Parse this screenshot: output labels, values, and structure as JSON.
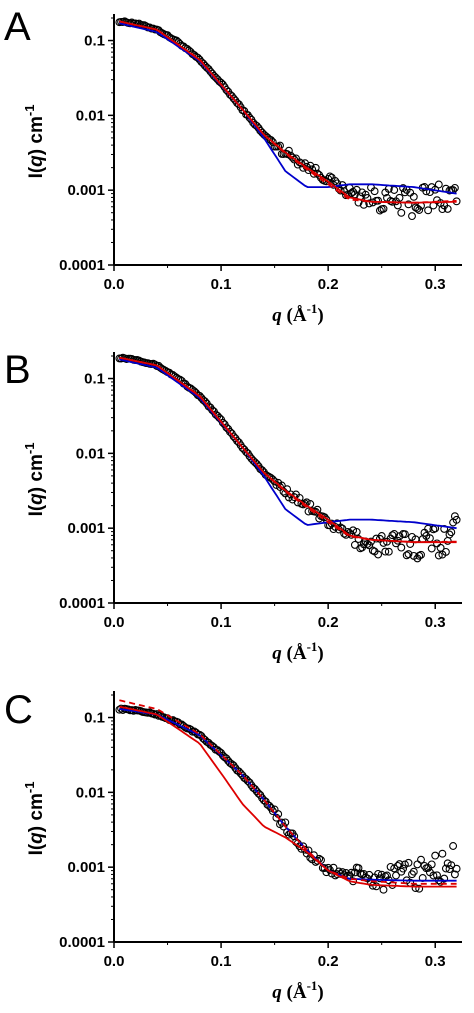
{
  "chart_data": [
    {
      "panel": "A",
      "type": "scatter",
      "xlabel": "q (Å-1)",
      "ylabel": "I(q) cm-1",
      "xlim": [
        0,
        0.325
      ],
      "ylim": [
        0.0001,
        0.2
      ],
      "yscale": "log",
      "xticks": [
        "0.0",
        "0.1",
        "0.2",
        "0.3"
      ],
      "yticks": [
        "0.1",
        "0.01",
        "0.001",
        "0.0001"
      ],
      "series": [
        {
          "style": "open-circles",
          "color": "#000000",
          "x": [
            0.005,
            0.02,
            0.04,
            0.06,
            0.08,
            0.1,
            0.12,
            0.14,
            0.16,
            0.18,
            0.2,
            0.22,
            0.24,
            0.26,
            0.28,
            0.3,
            0.32
          ],
          "y": [
            0.18,
            0.17,
            0.14,
            0.095,
            0.055,
            0.027,
            0.012,
            0.0055,
            0.0032,
            0.0021,
            0.0014,
            0.0009,
            0.0008,
            0.0007,
            0.0007,
            0.0008,
            0.0009
          ]
        },
        {
          "style": "line",
          "color": "#0000cc",
          "x": [
            0.005,
            0.04,
            0.08,
            0.12,
            0.14,
            0.16,
            0.18,
            0.2,
            0.22,
            0.24,
            0.28,
            0.32
          ],
          "y": [
            0.17,
            0.13,
            0.053,
            0.012,
            0.005,
            0.0018,
            0.0011,
            0.0011,
            0.0012,
            0.0012,
            0.0011,
            0.0009
          ]
        },
        {
          "style": "line",
          "color": "#dd0000",
          "x": [
            0.005,
            0.04,
            0.08,
            0.12,
            0.14,
            0.16,
            0.18,
            0.2,
            0.22,
            0.24,
            0.28,
            0.32
          ],
          "y": [
            0.18,
            0.14,
            0.055,
            0.012,
            0.0055,
            0.0032,
            0.002,
            0.0013,
            0.0008,
            0.0007,
            0.00068,
            0.0007
          ]
        },
        {
          "style": "dashed",
          "color": "#dd0000",
          "x": [
            0.005,
            0.04,
            0.08,
            0.12,
            0.14,
            0.16,
            0.18,
            0.2,
            0.22,
            0.24,
            0.28,
            0.32
          ],
          "y": [
            0.18,
            0.14,
            0.056,
            0.012,
            0.0055,
            0.0031,
            0.0019,
            0.0012,
            0.00075,
            0.0007,
            0.00068,
            0.00072
          ]
        }
      ]
    },
    {
      "panel": "B",
      "type": "scatter",
      "xlabel": "q (Å-1)",
      "ylabel": "I(q) cm-1",
      "xlim": [
        0,
        0.325
      ],
      "ylim": [
        0.0001,
        0.2
      ],
      "yscale": "log",
      "xticks": [
        "0.0",
        "0.1",
        "0.2",
        "0.3"
      ],
      "yticks": [
        "0.1",
        "0.01",
        "0.001",
        "0.0001"
      ],
      "series": [
        {
          "style": "open-circles",
          "color": "#000000",
          "x": [
            0.005,
            0.02,
            0.04,
            0.06,
            0.08,
            0.1,
            0.12,
            0.14,
            0.16,
            0.18,
            0.2,
            0.22,
            0.24,
            0.26,
            0.28,
            0.3,
            0.32
          ],
          "y": [
            0.19,
            0.18,
            0.15,
            0.1,
            0.058,
            0.028,
            0.012,
            0.0055,
            0.0032,
            0.002,
            0.0012,
            0.0008,
            0.0006,
            0.0006,
            0.0006,
            0.0007,
            0.0009
          ]
        },
        {
          "style": "line",
          "color": "#0000cc",
          "x": [
            0.005,
            0.04,
            0.08,
            0.12,
            0.14,
            0.16,
            0.18,
            0.2,
            0.22,
            0.24,
            0.28,
            0.32
          ],
          "y": [
            0.18,
            0.14,
            0.055,
            0.012,
            0.005,
            0.0018,
            0.0011,
            0.0012,
            0.0013,
            0.0013,
            0.0012,
            0.001
          ]
        },
        {
          "style": "line",
          "color": "#dd0000",
          "x": [
            0.005,
            0.04,
            0.08,
            0.12,
            0.14,
            0.16,
            0.18,
            0.2,
            0.22,
            0.24,
            0.28,
            0.32
          ],
          "y": [
            0.19,
            0.15,
            0.058,
            0.012,
            0.0055,
            0.0032,
            0.002,
            0.0013,
            0.0008,
            0.0007,
            0.00065,
            0.00065
          ]
        },
        {
          "style": "dashed",
          "color": "#dd0000",
          "x": [
            0.005,
            0.04,
            0.08,
            0.12,
            0.14,
            0.16,
            0.18,
            0.2,
            0.22,
            0.24,
            0.28,
            0.32
          ],
          "y": [
            0.19,
            0.15,
            0.059,
            0.012,
            0.0055,
            0.0031,
            0.0019,
            0.0012,
            0.00078,
            0.0007,
            0.00065,
            0.00066
          ]
        }
      ]
    },
    {
      "panel": "C",
      "type": "scatter",
      "xlabel": "q (Å-1)",
      "ylabel": "I(q) cm-1",
      "xlim": [
        0,
        0.325
      ],
      "ylim": [
        0.0001,
        0.2
      ],
      "yscale": "log",
      "xticks": [
        "0.0",
        "0.1",
        "0.2",
        "0.3"
      ],
      "yticks": [
        "0.1",
        "0.01",
        "0.001",
        "0.0001"
      ],
      "series": [
        {
          "style": "open-circles",
          "color": "#000000",
          "x": [
            0.005,
            0.02,
            0.04,
            0.06,
            0.08,
            0.1,
            0.12,
            0.14,
            0.16,
            0.18,
            0.2,
            0.22,
            0.24,
            0.26,
            0.28,
            0.3,
            0.32
          ],
          "y": [
            0.13,
            0.125,
            0.11,
            0.085,
            0.058,
            0.033,
            0.017,
            0.008,
            0.0035,
            0.0016,
            0.0009,
            0.0008,
            0.0007,
            0.0007,
            0.0008,
            0.0009,
            0.0012
          ]
        },
        {
          "style": "line",
          "color": "#0000cc",
          "x": [
            0.005,
            0.04,
            0.08,
            0.12,
            0.14,
            0.16,
            0.18,
            0.2,
            0.22,
            0.24,
            0.28,
            0.32
          ],
          "y": [
            0.13,
            0.11,
            0.058,
            0.017,
            0.008,
            0.0035,
            0.0017,
            0.0009,
            0.0007,
            0.00068,
            0.00066,
            0.00066
          ]
        },
        {
          "style": "line",
          "color": "#dd0000",
          "x": [
            0.005,
            0.04,
            0.08,
            0.1,
            0.12,
            0.14,
            0.16,
            0.18,
            0.2,
            0.22,
            0.24,
            0.28,
            0.32
          ],
          "y": [
            0.14,
            0.11,
            0.045,
            0.018,
            0.007,
            0.0035,
            0.0025,
            0.0016,
            0.0009,
            0.00065,
            0.00058,
            0.00055,
            0.00055
          ]
        },
        {
          "style": "dashed",
          "color": "#dd0000",
          "x": [
            0.005,
            0.04,
            0.08,
            0.12,
            0.14,
            0.16,
            0.18,
            0.2,
            0.22,
            0.24,
            0.28,
            0.32
          ],
          "y": [
            0.17,
            0.13,
            0.06,
            0.017,
            0.008,
            0.0035,
            0.0017,
            0.0009,
            0.0007,
            0.00065,
            0.0006,
            0.0006
          ]
        }
      ]
    }
  ]
}
